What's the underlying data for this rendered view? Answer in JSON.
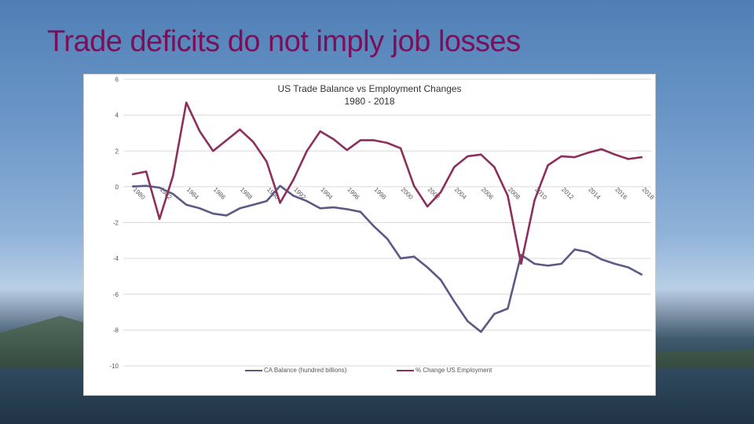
{
  "slide": {
    "title": "Trade deficits do not imply job losses"
  },
  "colors": {
    "title": "#7a0f5a",
    "ca_series": "#5b5a86",
    "emp_series": "#8c2f5c",
    "grid": "#d9d9d9"
  },
  "chart_data": {
    "type": "line",
    "title": "US Trade Balance vs Employment Changes",
    "subtitle": "1980 - 2018",
    "xlabel": "",
    "ylabel": "",
    "ylim": [
      -10,
      6
    ],
    "yticks": [
      6,
      4,
      2,
      0,
      -2,
      -4,
      -6,
      -8,
      -10
    ],
    "grid": "horizontal",
    "legend_position": "bottom",
    "x": [
      1980,
      1981,
      1982,
      1983,
      1984,
      1985,
      1986,
      1987,
      1988,
      1989,
      1990,
      1991,
      1992,
      1993,
      1994,
      1995,
      1996,
      1997,
      1998,
      1999,
      2000,
      2001,
      2002,
      2003,
      2004,
      2005,
      2006,
      2007,
      2008,
      2009,
      2010,
      2011,
      2012,
      2013,
      2014,
      2015,
      2016,
      2017,
      2018
    ],
    "xtick_labels": [
      "1980",
      "1982",
      "1984",
      "1986",
      "1988",
      "1990",
      "1992",
      "1994",
      "1996",
      "1998",
      "2000",
      "2002",
      "2004",
      "2006",
      "2008",
      "2010",
      "2012",
      "2014",
      "2016",
      "2018"
    ],
    "series": [
      {
        "name": "CA Balance (hundred billions)",
        "values": [
          0.02,
          0.05,
          -0.05,
          -0.4,
          -1.0,
          -1.2,
          -1.5,
          -1.6,
          -1.2,
          -1.0,
          -0.8,
          0.05,
          -0.5,
          -0.8,
          -1.2,
          -1.15,
          -1.25,
          -1.4,
          -2.2,
          -2.9,
          -4.0,
          -3.9,
          -4.5,
          -5.2,
          -6.4,
          -7.5,
          -8.1,
          -7.1,
          -6.8,
          -3.8,
          -4.3,
          -4.4,
          -4.3,
          -3.5,
          -3.65,
          -4.05,
          -4.3,
          -4.5,
          -4.9
        ]
      },
      {
        "name": "% Change US Employment",
        "values": [
          0.7,
          0.85,
          -1.8,
          0.6,
          4.7,
          3.1,
          2.0,
          2.6,
          3.2,
          2.5,
          1.4,
          -0.9,
          0.4,
          2.0,
          3.1,
          2.65,
          2.05,
          2.6,
          2.6,
          2.45,
          2.15,
          0.05,
          -1.1,
          -0.3,
          1.1,
          1.7,
          1.8,
          1.1,
          -0.5,
          -4.3,
          -0.75,
          1.2,
          1.7,
          1.65,
          1.9,
          2.1,
          1.8,
          1.55,
          1.65
        ]
      }
    ]
  }
}
